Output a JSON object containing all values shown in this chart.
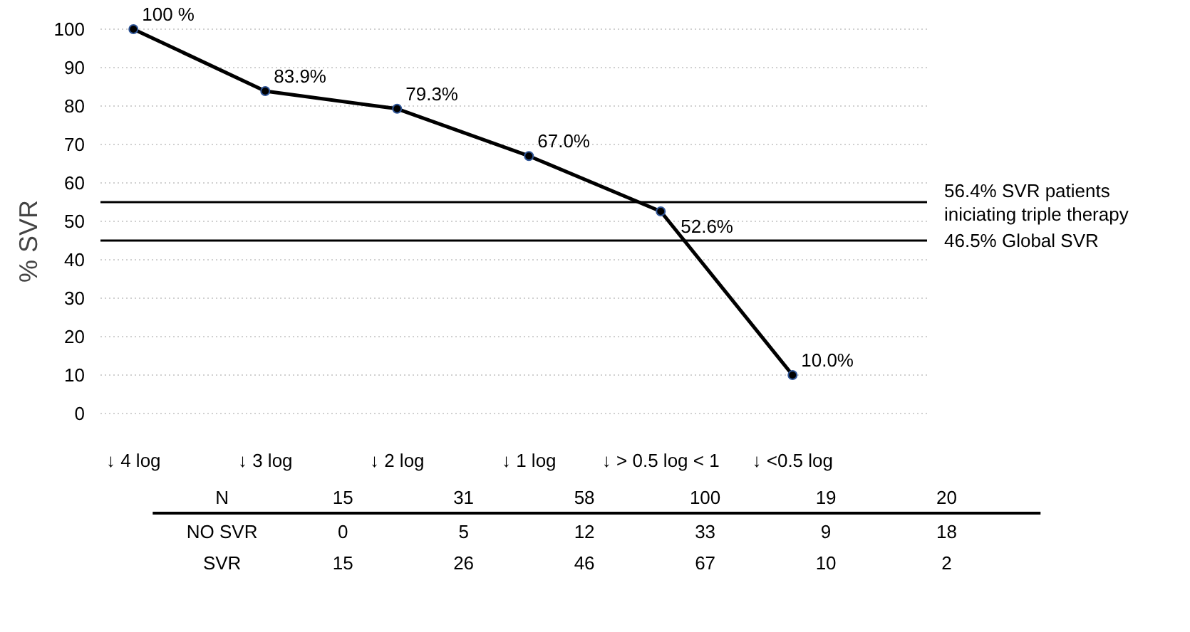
{
  "chart_data": {
    "type": "line",
    "ylabel": "% SVR",
    "categories": [
      "↓ 4 log",
      "↓ 3 log",
      "↓ 2 log",
      "↓ 1 log",
      "↓ > 0.5 log < 1",
      "↓ <0.5 log"
    ],
    "values": [
      100,
      83.9,
      79.3,
      67.0,
      52.6,
      10.0
    ],
    "value_labels": [
      "100 %",
      "83.9%",
      "79.3%",
      "67.0%",
      "52.6%",
      "10.0%"
    ],
    "color": "#000000",
    "marker": "circle",
    "line_style": "solid",
    "grid": "y",
    "ylim": [
      0,
      100
    ],
    "yticks": [
      0,
      10,
      20,
      30,
      40,
      50,
      60,
      70,
      80,
      90,
      100
    ],
    "ref_lines": [
      {
        "axis": "y",
        "value": 55,
        "label": "56.4% SVR patients iniciating triple therapy",
        "color": "#000000"
      },
      {
        "axis": "y",
        "value": 45,
        "label": "46.5% Global SVR",
        "color": "#000000"
      }
    ],
    "annotations": [
      "N",
      "15",
      "31",
      "58",
      "100",
      "19",
      "20",
      "NO SVR",
      "0",
      "5",
      "12",
      "33",
      "9",
      "18",
      "SVR",
      "15",
      "26",
      "46",
      "67",
      "10",
      "2"
    ]
  }
}
